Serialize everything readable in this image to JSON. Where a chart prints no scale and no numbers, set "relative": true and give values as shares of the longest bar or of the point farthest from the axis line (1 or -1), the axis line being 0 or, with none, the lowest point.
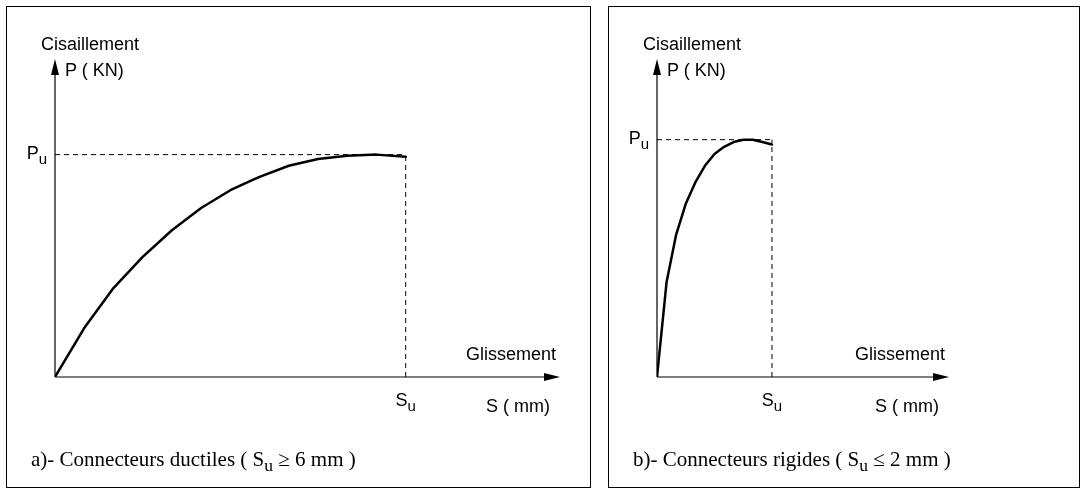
{
  "chart_data": [
    {
      "type": "line",
      "relative": true,
      "title": "a)- Connecteurs ductiles ( S$_{u}$ ≥ 6 mm )",
      "xlabel": "S ( mm)",
      "ylabel": "P ( KN)",
      "annotations": [
        "Cisaillement",
        "Glissement",
        "S$_{u}$"
      ],
      "categories": [
        null,
        null,
        null,
        null,
        null,
        null,
        null,
        null,
        null,
        null,
        null,
        null,
        null
      ],
      "series": [
        {
          "color": "#000000",
          "values": [
            0,
            0.22,
            0.4,
            0.54,
            0.66,
            0.76,
            0.84,
            0.9,
            0.95,
            0.98,
            0.995,
            1.0,
            0.99
          ]
        }
      ],
      "ref_lines": [
        {
          "axis": "y",
          "value": 1,
          "label": "P$_{u}$",
          "line_style": "dashed"
        }
      ],
      "line_style": "solid"
    },
    {
      "type": "line",
      "relative": true,
      "title": "b)- Connecteurs rigides ( S$_{u}$ ≤ 2 mm )",
      "xlabel": "S ( mm)",
      "ylabel": "P ( KN)",
      "annotations": [
        "Cisaillement",
        "Glissement",
        "S$_{u}$"
      ],
      "categories": [
        null,
        null,
        null,
        null,
        null,
        null,
        null,
        null,
        null,
        null,
        null,
        null,
        null
      ],
      "series": [
        {
          "color": "#000000",
          "values": [
            0,
            0.4,
            0.6,
            0.73,
            0.82,
            0.89,
            0.94,
            0.97,
            0.99,
            1.0,
            1.0,
            0.99,
            0.98
          ]
        }
      ],
      "ref_lines": [
        {
          "axis": "y",
          "value": 1,
          "label": "P$_{u}$",
          "line_style": "dashed"
        }
      ],
      "line_style": "solid"
    }
  ]
}
